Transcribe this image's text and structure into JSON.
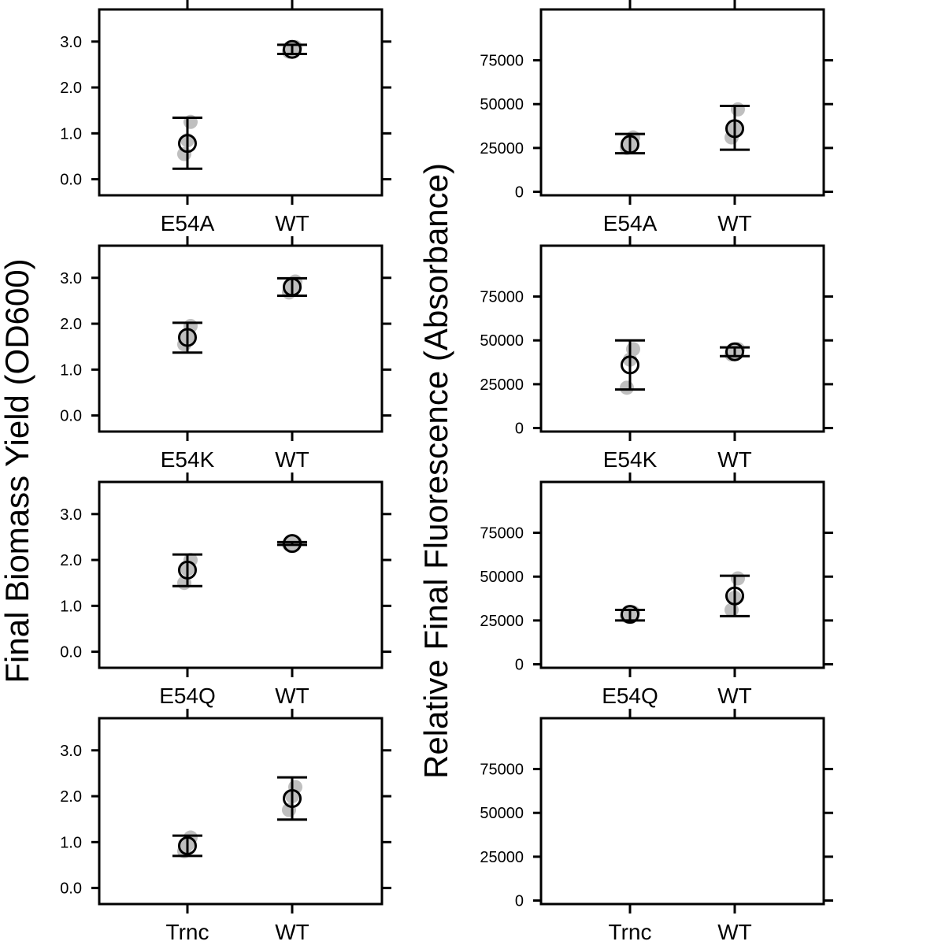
{
  "figure": {
    "left_ylabel": "Final Biomass Yield (OD600)",
    "right_ylabel": "Relative Final Fluorescence (Absorbance)"
  },
  "chart_data": [
    {
      "type": "scatter",
      "title": "",
      "ylabel": "Final Biomass Yield (OD600)",
      "categories": [
        "E54A",
        "WT"
      ],
      "ylim": [
        -0.35,
        3.7
      ],
      "yticks": [
        0.0,
        1.0,
        2.0,
        3.0
      ],
      "ytick_labels": [
        "0.0",
        "1.0",
        "2.0",
        "3.0"
      ],
      "means": [
        0.78,
        2.83
      ],
      "error_low": [
        0.23,
        2.73
      ],
      "error_high": [
        1.34,
        2.93
      ],
      "replicates": [
        [
          0.55,
          0.85,
          1.25
        ],
        [
          2.78,
          2.83,
          2.88
        ]
      ]
    },
    {
      "type": "scatter",
      "title": "",
      "ylabel": "Relative Final Fluorescence (Absorbance)",
      "categories": [
        "E54A",
        "WT"
      ],
      "ylim": [
        -2000,
        104000
      ],
      "yticks": [
        0,
        25000,
        50000,
        75000
      ],
      "ytick_labels": [
        "0",
        "25000",
        "50000",
        "75000"
      ],
      "means": [
        27000,
        36000
      ],
      "error_low": [
        22000,
        24000
      ],
      "error_high": [
        33000,
        49000
      ],
      "replicates": [
        [
          25000,
          27000,
          31000
        ],
        [
          31000,
          36000,
          47000
        ]
      ]
    },
    {
      "type": "scatter",
      "title": "",
      "ylabel": "Final Biomass Yield (OD600)",
      "categories": [
        "E54K",
        "WT"
      ],
      "ylim": [
        -0.35,
        3.7
      ],
      "yticks": [
        0.0,
        1.0,
        2.0,
        3.0
      ],
      "ytick_labels": [
        "0.0",
        "1.0",
        "2.0",
        "3.0"
      ],
      "means": [
        1.7,
        2.8
      ],
      "error_low": [
        1.37,
        2.61
      ],
      "error_high": [
        2.02,
        2.99
      ],
      "replicates": [
        [
          1.55,
          1.7,
          1.95
        ],
        [
          2.68,
          2.8,
          2.92
        ]
      ]
    },
    {
      "type": "scatter",
      "title": "",
      "ylabel": "Relative Final Fluorescence (Absorbance)",
      "categories": [
        "E54K",
        "WT"
      ],
      "ylim": [
        -2000,
        104000
      ],
      "yticks": [
        0,
        25000,
        50000,
        75000
      ],
      "ytick_labels": [
        "0",
        "25000",
        "50000",
        "75000"
      ],
      "means": [
        36000,
        43500
      ],
      "error_low": [
        22000,
        41000
      ],
      "error_high": [
        50000,
        46000
      ],
      "replicates": [
        [
          23000,
          39000,
          45000
        ],
        [
          42000,
          43500,
          45000
        ]
      ]
    },
    {
      "type": "scatter",
      "title": "",
      "ylabel": "Final Biomass Yield (OD600)",
      "categories": [
        "E54Q",
        "WT"
      ],
      "ylim": [
        -0.35,
        3.7
      ],
      "yticks": [
        0.0,
        1.0,
        2.0,
        3.0
      ],
      "ytick_labels": [
        "0.0",
        "1.0",
        "2.0",
        "3.0"
      ],
      "means": [
        1.78,
        2.36
      ],
      "error_low": [
        1.43,
        2.33
      ],
      "error_high": [
        2.12,
        2.39
      ],
      "replicates": [
        [
          1.5,
          1.8,
          2.0
        ],
        [
          2.34,
          2.36,
          2.38
        ]
      ]
    },
    {
      "type": "scatter",
      "title": "",
      "ylabel": "Relative Final Fluorescence (Absorbance)",
      "categories": [
        "E54Q",
        "WT"
      ],
      "ylim": [
        -2000,
        104000
      ],
      "yticks": [
        0,
        25000,
        50000,
        75000
      ],
      "ytick_labels": [
        "0",
        "25000",
        "50000",
        "75000"
      ],
      "means": [
        28500,
        39000
      ],
      "error_low": [
        25000,
        27500
      ],
      "error_high": [
        31000,
        50500
      ],
      "replicates": [
        [
          27500,
          28500,
          29500
        ],
        [
          31000,
          38000,
          49000
        ]
      ]
    },
    {
      "type": "scatter",
      "title": "",
      "ylabel": "Final Biomass Yield (OD600)",
      "categories": [
        "Trnc",
        "WT"
      ],
      "ylim": [
        -0.35,
        3.7
      ],
      "yticks": [
        0.0,
        1.0,
        2.0,
        3.0
      ],
      "ytick_labels": [
        "0.0",
        "1.0",
        "2.0",
        "3.0"
      ],
      "means": [
        0.92,
        1.95
      ],
      "error_low": [
        0.7,
        1.49
      ],
      "error_high": [
        1.14,
        2.41
      ],
      "replicates": [
        [
          0.8,
          0.95,
          1.1
        ],
        [
          1.7,
          2.0,
          2.2
        ]
      ]
    },
    {
      "type": "scatter",
      "title": "",
      "ylabel": "Relative Final Fluorescence (Absorbance)",
      "categories": [
        "Trnc",
        "WT"
      ],
      "ylim": [
        -2000,
        104000
      ],
      "yticks": [
        0,
        25000,
        50000,
        75000
      ],
      "ytick_labels": [
        "0",
        "25000",
        "50000",
        "75000"
      ],
      "means": [],
      "error_low": [],
      "error_high": [],
      "replicates": [
        [],
        []
      ]
    }
  ]
}
